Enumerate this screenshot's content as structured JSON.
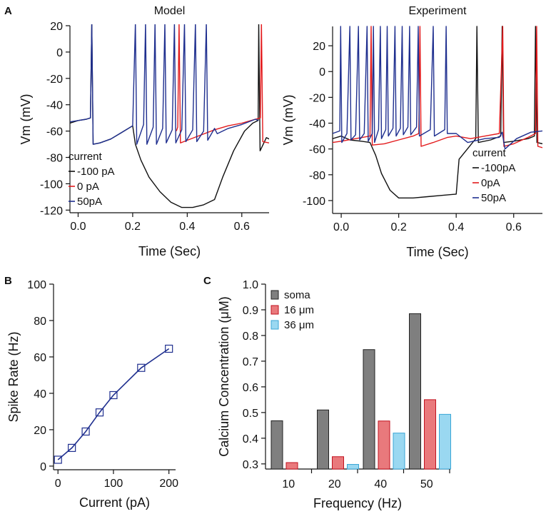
{
  "panels": {
    "a": "A",
    "b": "B",
    "c": "C"
  },
  "colors": {
    "neg100": "#111111",
    "zero": "#e31a1c",
    "pos50": "#1f2f8f",
    "soma": "#7f7f7f",
    "um16": "#e9797c",
    "um36": "#9ad8f1"
  },
  "chart_data": [
    {
      "id": "model",
      "type": "line",
      "title": "Model",
      "xlabel": "Time (Sec)",
      "ylabel": "Vm (mV)",
      "xlim": [
        -0.03,
        0.7
      ],
      "ylim": [
        -122,
        20
      ],
      "xticks": [
        "0.0",
        "0.2",
        "0.4",
        "0.6"
      ],
      "xtick_values": [
        0,
        0.2,
        0.4,
        0.6
      ],
      "yticks": [
        "20",
        "0",
        "-20",
        "-40",
        "-60",
        "-80",
        "-100",
        "-120"
      ],
      "ytick_values": [
        20,
        0,
        -20,
        -40,
        -60,
        -80,
        -100,
        -120
      ],
      "legend_title": "current",
      "series": [
        {
          "name": "-100 pA",
          "color": "#111111",
          "points": [
            [
              -0.03,
              -54
            ],
            [
              0.0,
              -52
            ],
            [
              0.03,
              -51
            ],
            [
              0.045,
              -50
            ],
            [
              0.05,
              22
            ],
            [
              0.055,
              -70
            ],
            [
              0.08,
              -69
            ],
            [
              0.12,
              -66
            ],
            [
              0.16,
              -61
            ],
            [
              0.2,
              -56
            ],
            [
              0.21,
              -70
            ],
            [
              0.23,
              -82
            ],
            [
              0.26,
              -95
            ],
            [
              0.3,
              -106
            ],
            [
              0.34,
              -114
            ],
            [
              0.38,
              -118
            ],
            [
              0.42,
              -118
            ],
            [
              0.46,
              -116
            ],
            [
              0.5,
              -112
            ],
            [
              0.53,
              -95
            ],
            [
              0.57,
              -75
            ],
            [
              0.61,
              -60
            ],
            [
              0.64,
              -54
            ],
            [
              0.66,
              -52
            ],
            [
              0.662,
              22
            ],
            [
              0.667,
              -75
            ],
            [
              0.69,
              -65
            ],
            [
              0.7,
              -66
            ]
          ]
        },
        {
          "name": "0 pA",
          "color": "#e31a1c",
          "points": [
            [
              0.36,
              -60
            ],
            [
              0.365,
              -57
            ],
            [
              0.37,
              22
            ],
            [
              0.375,
              -69
            ],
            [
              0.4,
              -67
            ],
            [
              0.45,
              -63
            ],
            [
              0.5,
              -59
            ],
            [
              0.55,
              -56
            ],
            [
              0.6,
              -54
            ],
            [
              0.65,
              -51
            ],
            [
              0.668,
              -50
            ],
            [
              0.672,
              22
            ],
            [
              0.677,
              -68
            ],
            [
              0.7,
              -69
            ]
          ]
        },
        {
          "name": "50pA",
          "color": "#1f2f8f",
          "points": [
            [
              -0.03,
              -53
            ],
            [
              0.0,
              -52
            ],
            [
              0.03,
              -51
            ],
            [
              0.045,
              -50
            ],
            [
              0.05,
              22
            ],
            [
              0.055,
              -70
            ],
            [
              0.08,
              -69
            ],
            [
              0.12,
              -66
            ],
            [
              0.16,
              -61
            ],
            [
              0.2,
              -56
            ],
            [
              0.21,
              22
            ],
            [
              0.215,
              -70
            ],
            [
              0.24,
              -55
            ],
            [
              0.247,
              22
            ],
            [
              0.252,
              -70
            ],
            [
              0.275,
              -57
            ],
            [
              0.282,
              22
            ],
            [
              0.287,
              -70
            ],
            [
              0.31,
              -58
            ],
            [
              0.318,
              22
            ],
            [
              0.323,
              -69
            ],
            [
              0.345,
              -59
            ],
            [
              0.353,
              22
            ],
            [
              0.358,
              -69
            ],
            [
              0.38,
              -59
            ],
            [
              0.39,
              22
            ],
            [
              0.395,
              -68
            ],
            [
              0.42,
              -59
            ],
            [
              0.43,
              22
            ],
            [
              0.435,
              -68
            ],
            [
              0.46,
              -60
            ],
            [
              0.47,
              22
            ],
            [
              0.475,
              -67
            ],
            [
              0.5,
              -58
            ],
            [
              0.51,
              -62
            ],
            [
              0.55,
              -58
            ],
            [
              0.6,
              -55
            ],
            [
              0.65,
              -51
            ],
            [
              0.66,
              -52
            ]
          ]
        }
      ]
    },
    {
      "id": "experiment",
      "type": "line",
      "title": "Experiment",
      "xlabel": "Time (Sec)",
      "ylabel": "Vm (mV)",
      "xlim": [
        -0.03,
        0.7
      ],
      "ylim": [
        -110,
        35
      ],
      "xticks": [
        "0.0",
        "0.2",
        "0.4",
        "0.6"
      ],
      "xtick_values": [
        0,
        0.2,
        0.4,
        0.6
      ],
      "yticks": [
        "20",
        "0",
        "-20",
        "-40",
        "-60",
        "-80",
        "-100"
      ],
      "ytick_values": [
        20,
        0,
        -20,
        -40,
        -60,
        -80,
        -100
      ],
      "legend_title": "current",
      "series": [
        {
          "name": "-100pA",
          "color": "#111111",
          "points": [
            [
              -0.03,
              -52
            ],
            [
              0.0,
              -50
            ],
            [
              0.03,
              -53
            ],
            [
              0.07,
              -54
            ],
            [
              0.1,
              -55
            ],
            [
              0.12,
              -65
            ],
            [
              0.14,
              -79
            ],
            [
              0.17,
              -92
            ],
            [
              0.2,
              -98
            ],
            [
              0.25,
              -98
            ],
            [
              0.3,
              -97
            ],
            [
              0.35,
              -96
            ],
            [
              0.4,
              -95
            ],
            [
              0.41,
              -68
            ],
            [
              0.45,
              -57
            ],
            [
              0.468,
              -52
            ],
            [
              0.472,
              35
            ],
            [
              0.477,
              -55
            ],
            [
              0.52,
              -53
            ],
            [
              0.555,
              -50
            ],
            [
              0.56,
              35
            ],
            [
              0.565,
              -55
            ],
            [
              0.6,
              -54
            ],
            [
              0.65,
              -52
            ],
            [
              0.672,
              -50
            ],
            [
              0.676,
              35
            ],
            [
              0.681,
              -55
            ],
            [
              0.7,
              -56
            ]
          ]
        },
        {
          "name": "0pA",
          "color": "#e31a1c",
          "points": [
            [
              -0.03,
              -55
            ],
            [
              0.0,
              -54
            ],
            [
              0.05,
              -52
            ],
            [
              0.1,
              -50
            ],
            [
              0.104,
              35
            ],
            [
              0.108,
              -57
            ],
            [
              0.15,
              -56
            ],
            [
              0.2,
              -53
            ],
            [
              0.25,
              -50
            ],
            [
              0.27,
              -48
            ],
            [
              0.274,
              35
            ],
            [
              0.278,
              -58
            ],
            [
              0.32,
              -55
            ],
            [
              0.37,
              -51
            ],
            [
              0.4,
              -50
            ],
            [
              0.45,
              -52
            ],
            [
              0.5,
              -50
            ],
            [
              0.55,
              -48
            ],
            [
              0.562,
              35
            ],
            [
              0.566,
              -58
            ],
            [
              0.6,
              -56
            ],
            [
              0.65,
              -51
            ],
            [
              0.676,
              -48
            ],
            [
              0.68,
              35
            ],
            [
              0.684,
              -58
            ],
            [
              0.7,
              -59
            ]
          ]
        },
        {
          "name": "50pA",
          "color": "#1f2f8f",
          "points": [
            [
              -0.03,
              -48
            ],
            [
              -0.005,
              -46
            ],
            [
              -0.002,
              35
            ],
            [
              0.002,
              -55
            ],
            [
              0.02,
              -48
            ],
            [
              0.03,
              35
            ],
            [
              0.034,
              -53
            ],
            [
              0.05,
              -49
            ],
            [
              0.06,
              35
            ],
            [
              0.064,
              -53
            ],
            [
              0.08,
              -48
            ],
            [
              0.09,
              35
            ],
            [
              0.094,
              -54
            ],
            [
              0.108,
              -48
            ],
            [
              0.112,
              35
            ],
            [
              0.116,
              -55
            ],
            [
              0.13,
              -45
            ],
            [
              0.136,
              35
            ],
            [
              0.14,
              -52
            ],
            [
              0.155,
              -45
            ],
            [
              0.16,
              35
            ],
            [
              0.164,
              -50
            ],
            [
              0.18,
              -44
            ],
            [
              0.187,
              35
            ],
            [
              0.191,
              -50
            ],
            [
              0.206,
              -44
            ],
            [
              0.212,
              35
            ],
            [
              0.216,
              -49
            ],
            [
              0.232,
              -43
            ],
            [
              0.238,
              35
            ],
            [
              0.242,
              -49
            ],
            [
              0.262,
              -43
            ],
            [
              0.268,
              35
            ],
            [
              0.272,
              -50
            ],
            [
              0.31,
              -45
            ],
            [
              0.32,
              35
            ],
            [
              0.324,
              -50
            ],
            [
              0.36,
              -45
            ],
            [
              0.365,
              35
            ],
            [
              0.369,
              -48
            ],
            [
              0.4,
              -48
            ],
            [
              0.44,
              -55
            ],
            [
              0.5,
              -52
            ],
            [
              0.55,
              -51
            ],
            [
              0.56,
              -47
            ],
            [
              0.57,
              -60
            ],
            [
              0.61,
              -52
            ],
            [
              0.64,
              -49
            ],
            [
              0.66,
              -47
            ],
            [
              0.7,
              -46
            ]
          ]
        }
      ]
    },
    {
      "id": "fi",
      "type": "scatter",
      "xlabel": "Current (pA)",
      "ylabel": "Spike Rate (Hz)",
      "xlim": [
        -8,
        212
      ],
      "ylim": [
        -2,
        100
      ],
      "xticks": [
        "0",
        "100",
        "200"
      ],
      "xtick_values": [
        0,
        100,
        200
      ],
      "yticks": [
        "0",
        "20",
        "40",
        "60",
        "80",
        "100"
      ],
      "ytick_values": [
        0,
        20,
        40,
        60,
        80,
        100
      ],
      "x": [
        0,
        25,
        50,
        75,
        100,
        150,
        200
      ],
      "y": [
        3.5,
        10,
        19,
        29.5,
        39,
        54,
        64.5
      ],
      "color": "#1f2f8f"
    },
    {
      "id": "calcium",
      "type": "bar",
      "xlabel": "Frequency (Hz)",
      "ylabel": "Calcium Concentration (μM)",
      "categories": [
        "10",
        "20",
        "40",
        "50"
      ],
      "ylim": [
        0.28,
        1.0
      ],
      "yticks": [
        "0.3",
        "0.4",
        "0.5",
        "0.6",
        "0.7",
        "0.8",
        "0.9",
        "1.0"
      ],
      "ytick_values": [
        0.3,
        0.4,
        0.5,
        0.6,
        0.7,
        0.8,
        0.9,
        1.0
      ],
      "series": [
        {
          "name": "soma",
          "color": "#7f7f7f",
          "values": [
            0.468,
            0.51,
            0.745,
            0.885
          ]
        },
        {
          "name": "16 μm",
          "color": "#e9797c",
          "values": [
            0.305,
            0.328,
            0.467,
            0.55
          ]
        },
        {
          "name": "36 μm",
          "color": "#9ad8f1",
          "values": [
            null,
            0.298,
            0.42,
            0.493
          ]
        }
      ]
    }
  ]
}
